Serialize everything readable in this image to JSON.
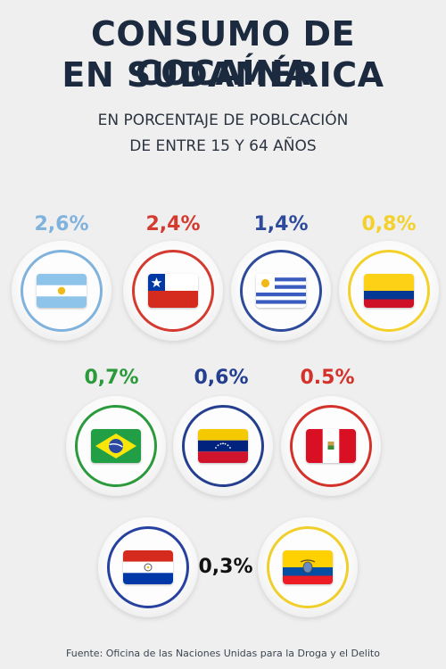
{
  "title_line1": "CONSUMO DE COCAÍNA",
  "title_line2": "EN SUDAMÉRICA",
  "subtitle_line1": "EN PORCENTAJE DE POBLCACIÓN",
  "subtitle_line2": "DE ENTRE 15 Y 64 AÑOS",
  "footer": "Fuente: Oficina de las Naciones Unidas para la Droga y el Delito",
  "colors": {
    "title": "#1b2a3e",
    "argentina": "#7fb2dc",
    "chile": "#d43a2f",
    "uruguay": "#2e4a9a",
    "colombia": "#f3d12a",
    "brazil": "#2a9a3a",
    "venezuela": "#243f8f",
    "peru": "#d3322b",
    "paraguay": "#2741a0",
    "ecuador": "#f0cf2a",
    "shared_label": "#111111"
  },
  "chart_data": {
    "type": "pictorial",
    "title": "CONSUMO DE COCAÍNA EN SUDAMÉRICA",
    "subtitle": "EN PORCENTAJE DE POBLCACIÓN DE ENTRE 15 Y 64 AÑOS",
    "items": [
      {
        "flag": "argentina-flag",
        "value": 2.6,
        "label": "2,6%"
      },
      {
        "flag": "chile-flag",
        "value": 2.4,
        "label": "2,4%"
      },
      {
        "flag": "uruguay-flag",
        "value": 1.4,
        "label": "1,4%"
      },
      {
        "flag": "colombia-flag",
        "value": 0.8,
        "label": "0,8%"
      },
      {
        "flag": "brazil-flag",
        "value": 0.7,
        "label": "0,7%"
      },
      {
        "flag": "venezuela-flag",
        "value": 0.6,
        "label": "0,6%"
      },
      {
        "flag": "peru-flag",
        "value": 0.5,
        "label": "0.5%"
      },
      {
        "flag": "paraguay-flag",
        "value": 0.3,
        "label": ""
      },
      {
        "flag": "ecuador-flag",
        "value": 0.3,
        "label": ""
      }
    ],
    "shared_label": "0,3%"
  }
}
